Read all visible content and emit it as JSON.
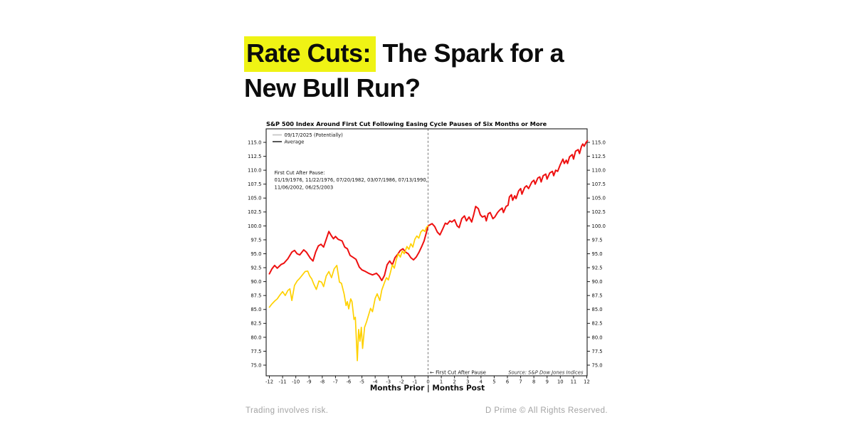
{
  "header": {
    "title_highlight": "Rate Cuts:",
    "title_rest_line1": " The Spark for a",
    "title_line2": "New Bull Run?",
    "highlight_color": "#eff314",
    "title_color": "#0c0c0c"
  },
  "footer": {
    "left_text": "Trading involves risk.",
    "right_text": "D Prime © All Rights Reserved.",
    "text_color": "#a3a3a3"
  },
  "chart_data": {
    "type": "line",
    "title": "S&P 500 Index Around First Cut Following Easing Cycle Pauses of Six Months or More",
    "xlabel": "Months Prior | Months Post",
    "ylabel": "",
    "xlim": [
      -12.25,
      12.1
    ],
    "ylim": [
      72.9,
      117.4
    ],
    "grid": false,
    "x_ticks": [
      -12,
      -11,
      -10,
      -9,
      -8,
      -7,
      -6,
      -5,
      -4,
      -3,
      -2,
      -1,
      0,
      1,
      2,
      3,
      4,
      5,
      6,
      7,
      8,
      9,
      10,
      11,
      12
    ],
    "y_ticks": [
      115.0,
      112.5,
      110.0,
      107.5,
      105.0,
      102.5,
      100.0,
      97.5,
      95.0,
      92.5,
      90.0,
      87.5,
      85.0,
      82.5,
      80.0,
      77.5,
      75.0
    ],
    "vline": {
      "x": 0,
      "style": "dashed",
      "color": "#8a8a8a"
    },
    "legend": {
      "position": "top-left",
      "entries": [
        {
          "label": "09/17/2025 (Potentially)",
          "swatch_color": "#c4c4c4"
        },
        {
          "label": "Average",
          "swatch_color": "#3a3a3a"
        }
      ]
    },
    "annotations": {
      "first_cut_lines": [
        "First Cut After Pause:",
        "01/19/1976, 11/22/1976, 07/20/1982, 03/07/1986, 07/13/1990,",
        "11/06/2002, 06/25/2003"
      ],
      "arrow_label": "←  First Cut After Pause",
      "source": "Source:  S&P Dow Jones Indices"
    },
    "series": [
      {
        "name": "Average",
        "color": "#ee1010",
        "width": 2,
        "points": [
          [
            -12,
            91.4
          ],
          [
            -11.8,
            92.3
          ],
          [
            -11.6,
            92.9
          ],
          [
            -11.4,
            92.4
          ],
          [
            -11.1,
            93.1
          ],
          [
            -10.9,
            93.3
          ],
          [
            -10.6,
            94.1
          ],
          [
            -10.3,
            95.3
          ],
          [
            -10.1,
            95.6
          ],
          [
            -9.9,
            95.0
          ],
          [
            -9.7,
            94.8
          ],
          [
            -9.4,
            95.7
          ],
          [
            -9.2,
            95.3
          ],
          [
            -8.9,
            94.2
          ],
          [
            -8.7,
            93.7
          ],
          [
            -8.5,
            95.3
          ],
          [
            -8.3,
            96.4
          ],
          [
            -8.1,
            96.7
          ],
          [
            -7.9,
            96.2
          ],
          [
            -7.7,
            97.6
          ],
          [
            -7.5,
            99.0
          ],
          [
            -7.3,
            98.2
          ],
          [
            -7.15,
            97.7
          ],
          [
            -7.0,
            98.1
          ],
          [
            -6.8,
            97.6
          ],
          [
            -6.5,
            97.3
          ],
          [
            -6.3,
            96.2
          ],
          [
            -6.1,
            95.9
          ],
          [
            -5.9,
            94.7
          ],
          [
            -5.7,
            94.4
          ],
          [
            -5.45,
            94.0
          ],
          [
            -5.2,
            92.6
          ],
          [
            -5.0,
            92.1
          ],
          [
            -4.8,
            91.9
          ],
          [
            -4.5,
            91.5
          ],
          [
            -4.2,
            91.2
          ],
          [
            -3.9,
            91.5
          ],
          [
            -3.7,
            91.0
          ],
          [
            -3.5,
            90.2
          ],
          [
            -3.3,
            91.1
          ],
          [
            -3.1,
            93.0
          ],
          [
            -2.9,
            93.7
          ],
          [
            -2.7,
            93.0
          ],
          [
            -2.5,
            94.3
          ],
          [
            -2.3,
            94.9
          ],
          [
            -2.1,
            95.6
          ],
          [
            -1.9,
            95.9
          ],
          [
            -1.7,
            95.3
          ],
          [
            -1.5,
            95.0
          ],
          [
            -1.3,
            94.3
          ],
          [
            -1.1,
            93.9
          ],
          [
            -0.9,
            94.4
          ],
          [
            -0.7,
            95.2
          ],
          [
            -0.5,
            96.2
          ],
          [
            -0.3,
            97.3
          ],
          [
            -0.15,
            98.6
          ],
          [
            0,
            100.0
          ],
          [
            0.15,
            100.2
          ],
          [
            0.3,
            100.4
          ],
          [
            0.5,
            99.9
          ],
          [
            0.7,
            98.9
          ],
          [
            0.9,
            98.4
          ],
          [
            1.1,
            99.4
          ],
          [
            1.3,
            100.5
          ],
          [
            1.45,
            100.3
          ],
          [
            1.65,
            100.9
          ],
          [
            1.8,
            100.7
          ],
          [
            2.0,
            101.1
          ],
          [
            2.2,
            100.0
          ],
          [
            2.35,
            99.7
          ],
          [
            2.55,
            101.3
          ],
          [
            2.75,
            101.8
          ],
          [
            2.9,
            100.9
          ],
          [
            3.1,
            101.6
          ],
          [
            3.3,
            100.7
          ],
          [
            3.45,
            102.0
          ],
          [
            3.6,
            103.5
          ],
          [
            3.8,
            103.1
          ],
          [
            3.95,
            102.0
          ],
          [
            4.1,
            101.6
          ],
          [
            4.3,
            101.8
          ],
          [
            4.4,
            100.9
          ],
          [
            4.55,
            102.2
          ],
          [
            4.7,
            102.4
          ],
          [
            4.9,
            101.3
          ],
          [
            5.05,
            101.6
          ],
          [
            5.25,
            102.4
          ],
          [
            5.4,
            102.8
          ],
          [
            5.6,
            103.2
          ],
          [
            5.7,
            102.4
          ],
          [
            5.9,
            103.5
          ],
          [
            6.05,
            103.7
          ],
          [
            6.15,
            105.2
          ],
          [
            6.3,
            105.6
          ],
          [
            6.4,
            104.6
          ],
          [
            6.55,
            105.4
          ],
          [
            6.65,
            104.9
          ],
          [
            6.85,
            106.3
          ],
          [
            7.0,
            106.7
          ],
          [
            7.1,
            105.7
          ],
          [
            7.3,
            106.9
          ],
          [
            7.45,
            107.2
          ],
          [
            7.6,
            106.7
          ],
          [
            7.85,
            107.9
          ],
          [
            8.0,
            108.2
          ],
          [
            8.1,
            107.5
          ],
          [
            8.3,
            108.6
          ],
          [
            8.45,
            108.8
          ],
          [
            8.55,
            107.9
          ],
          [
            8.7,
            109.0
          ],
          [
            8.9,
            109.3
          ],
          [
            9.0,
            108.4
          ],
          [
            9.2,
            109.5
          ],
          [
            9.4,
            109.8
          ],
          [
            9.5,
            109.0
          ],
          [
            9.65,
            110.0
          ],
          [
            9.8,
            109.8
          ],
          [
            10.0,
            111.0
          ],
          [
            10.2,
            112.0
          ],
          [
            10.3,
            111.2
          ],
          [
            10.45,
            111.8
          ],
          [
            10.55,
            111.2
          ],
          [
            10.7,
            112.4
          ],
          [
            10.9,
            112.8
          ],
          [
            11.0,
            112.0
          ],
          [
            11.15,
            113.4
          ],
          [
            11.35,
            113.7
          ],
          [
            11.45,
            113.0
          ],
          [
            11.6,
            114.3
          ],
          [
            11.7,
            114.7
          ],
          [
            11.8,
            114.3
          ],
          [
            11.95,
            115.0
          ],
          [
            12.05,
            115.3
          ]
        ]
      },
      {
        "name": "09/17/2025 (Potentially)",
        "color": "#ffd100",
        "width": 1.7,
        "points": [
          [
            -12,
            85.4
          ],
          [
            -11.8,
            86.0
          ],
          [
            -11.6,
            86.5
          ],
          [
            -11.4,
            86.9
          ],
          [
            -11.2,
            87.6
          ],
          [
            -11.0,
            88.2
          ],
          [
            -10.8,
            87.5
          ],
          [
            -10.6,
            88.4
          ],
          [
            -10.45,
            88.7
          ],
          [
            -10.3,
            86.6
          ],
          [
            -10.1,
            89.3
          ],
          [
            -9.9,
            90.1
          ],
          [
            -9.7,
            90.6
          ],
          [
            -9.5,
            91.2
          ],
          [
            -9.3,
            91.8
          ],
          [
            -9.1,
            91.9
          ],
          [
            -8.95,
            91.0
          ],
          [
            -8.8,
            90.5
          ],
          [
            -8.65,
            89.6
          ],
          [
            -8.45,
            88.6
          ],
          [
            -8.25,
            90.1
          ],
          [
            -8.05,
            89.9
          ],
          [
            -7.9,
            89.1
          ],
          [
            -7.7,
            91.0
          ],
          [
            -7.5,
            91.8
          ],
          [
            -7.3,
            90.7
          ],
          [
            -7.1,
            92.3
          ],
          [
            -6.9,
            92.9
          ],
          [
            -6.7,
            89.9
          ],
          [
            -6.55,
            89.7
          ],
          [
            -6.35,
            87.8
          ],
          [
            -6.2,
            85.7
          ],
          [
            -6.1,
            86.4
          ],
          [
            -6.0,
            85.1
          ],
          [
            -5.85,
            86.9
          ],
          [
            -5.75,
            86.4
          ],
          [
            -5.6,
            83.2
          ],
          [
            -5.5,
            83.6
          ],
          [
            -5.35,
            75.8
          ],
          [
            -5.25,
            81.4
          ],
          [
            -5.15,
            79.3
          ],
          [
            -5.05,
            81.8
          ],
          [
            -4.95,
            78.0
          ],
          [
            -4.8,
            81.8
          ],
          [
            -4.65,
            82.8
          ],
          [
            -4.5,
            84.0
          ],
          [
            -4.35,
            85.2
          ],
          [
            -4.2,
            84.6
          ],
          [
            -4.0,
            87.0
          ],
          [
            -3.85,
            87.8
          ],
          [
            -3.65,
            86.6
          ],
          [
            -3.5,
            88.5
          ],
          [
            -3.3,
            89.8
          ],
          [
            -3.15,
            90.7
          ],
          [
            -3.0,
            90.3
          ],
          [
            -2.85,
            91.6
          ],
          [
            -2.7,
            93.0
          ],
          [
            -2.55,
            92.4
          ],
          [
            -2.4,
            94.0
          ],
          [
            -2.25,
            95.0
          ],
          [
            -2.1,
            94.4
          ],
          [
            -1.95,
            95.5
          ],
          [
            -1.8,
            95.0
          ],
          [
            -1.6,
            96.3
          ],
          [
            -1.45,
            95.8
          ],
          [
            -1.3,
            96.8
          ],
          [
            -1.15,
            96.2
          ],
          [
            -1.0,
            97.6
          ],
          [
            -0.85,
            98.2
          ],
          [
            -0.7,
            97.8
          ],
          [
            -0.55,
            98.9
          ],
          [
            -0.4,
            99.3
          ],
          [
            -0.25,
            99.0
          ],
          [
            -0.1,
            99.8
          ],
          [
            0,
            100.0
          ]
        ]
      }
    ]
  }
}
